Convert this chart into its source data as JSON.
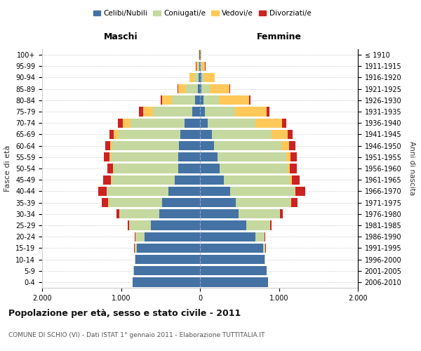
{
  "age_groups": [
    "0-4",
    "5-9",
    "10-14",
    "15-19",
    "20-24",
    "25-29",
    "30-34",
    "35-39",
    "40-44",
    "45-49",
    "50-54",
    "55-59",
    "60-64",
    "65-69",
    "70-74",
    "75-79",
    "80-84",
    "85-89",
    "90-94",
    "95-99",
    "100+"
  ],
  "birth_years": [
    "2006-2010",
    "2001-2005",
    "1996-2000",
    "1991-1995",
    "1986-1990",
    "1981-1985",
    "1976-1980",
    "1971-1975",
    "1966-1970",
    "1961-1965",
    "1956-1960",
    "1951-1955",
    "1946-1950",
    "1941-1945",
    "1936-1940",
    "1931-1935",
    "1926-1930",
    "1921-1925",
    "1916-1920",
    "1911-1915",
    "≤ 1910"
  ],
  "colors": {
    "celibe": "#4472a4",
    "coniugato": "#c5d8a0",
    "vedovo": "#ffc859",
    "divorziato": "#cc2222"
  },
  "maschi": {
    "celibe": [
      850,
      840,
      820,
      800,
      700,
      620,
      520,
      480,
      400,
      320,
      280,
      280,
      270,
      250,
      200,
      100,
      60,
      25,
      20,
      10,
      5
    ],
    "coniugato": [
      2,
      2,
      5,
      30,
      120,
      280,
      500,
      680,
      780,
      800,
      810,
      850,
      840,
      780,
      680,
      500,
      300,
      150,
      50,
      15,
      5
    ],
    "vedovo": [
      0,
      0,
      0,
      0,
      2,
      2,
      2,
      2,
      5,
      5,
      10,
      20,
      30,
      60,
      100,
      120,
      120,
      100,
      60,
      20,
      5
    ],
    "divorziato": [
      0,
      0,
      0,
      2,
      5,
      15,
      40,
      80,
      100,
      100,
      70,
      70,
      60,
      60,
      60,
      50,
      20,
      10,
      5,
      5,
      2
    ]
  },
  "femmine": {
    "nubile": [
      860,
      840,
      820,
      800,
      700,
      590,
      490,
      450,
      380,
      300,
      250,
      220,
      180,
      150,
      100,
      60,
      40,
      20,
      15,
      10,
      5
    ],
    "coniugata": [
      2,
      2,
      5,
      30,
      120,
      300,
      520,
      700,
      820,
      840,
      860,
      870,
      850,
      760,
      600,
      380,
      200,
      100,
      40,
      15,
      5
    ],
    "vedova": [
      0,
      0,
      0,
      0,
      2,
      2,
      2,
      5,
      10,
      20,
      30,
      60,
      100,
      200,
      340,
      400,
      380,
      250,
      130,
      40,
      5
    ],
    "divorziata": [
      0,
      0,
      0,
      2,
      5,
      15,
      40,
      80,
      120,
      100,
      90,
      80,
      80,
      60,
      55,
      40,
      20,
      10,
      5,
      5,
      2
    ]
  },
  "title": "Popolazione per età, sesso e stato civile - 2011",
  "subtitle": "COMUNE DI SCHIO (VI) - Dati ISTAT 1° gennaio 2011 - Elaborazione TUTTITALIA.IT",
  "xlabel_maschi": "Maschi",
  "xlabel_femmine": "Femmine",
  "ylabel": "Fasce di età",
  "ylabel_right": "Anni di nascita",
  "xlim": 2000,
  "xticks": [
    -2000,
    -1000,
    0,
    1000,
    2000
  ],
  "xticklabels": [
    "2.000",
    "1.000",
    "0",
    "1.000",
    "2.000"
  ],
  "legend_labels": [
    "Celibi/Nubili",
    "Coniugati/e",
    "Vedovi/e",
    "Divorziati/e"
  ],
  "bg_color": "#ffffff"
}
